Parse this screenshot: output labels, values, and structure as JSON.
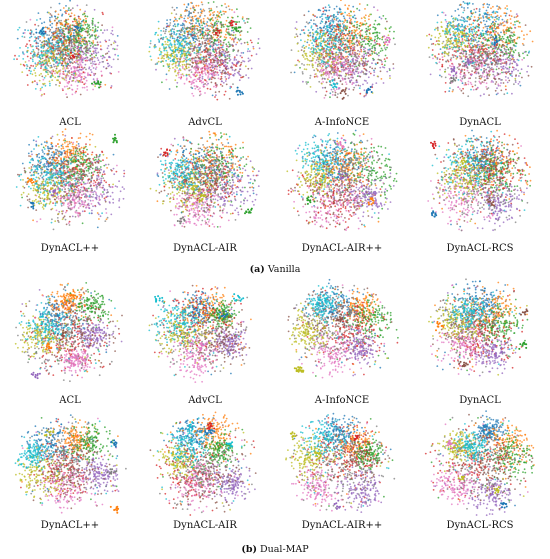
{
  "chart_data": {
    "type": "scatter",
    "description_kind": "t-SNE embeddings",
    "colors": [
      "#1f77b4",
      "#ff7f0e",
      "#2ca02c",
      "#d62728",
      "#9467bd",
      "#8c564b",
      "#e377c2",
      "#7f7f7f",
      "#bcbd22",
      "#17becf"
    ],
    "subfigures": [
      {
        "caption_letter": "(a)",
        "caption_text": "Vanilla",
        "panels": [
          {
            "label": "ACL"
          },
          {
            "label": "AdvCL"
          },
          {
            "label": "A-InfoNCE"
          },
          {
            "label": "DynACL"
          },
          {
            "label": "DynACL++"
          },
          {
            "label": "DynACL-AIR"
          },
          {
            "label": "DynACL-AIR++"
          },
          {
            "label": "DynACL-RCS"
          }
        ]
      },
      {
        "caption_letter": "(b)",
        "caption_text": "Dual-MAP",
        "panels": [
          {
            "label": "ACL"
          },
          {
            "label": "AdvCL"
          },
          {
            "label": "A-InfoNCE"
          },
          {
            "label": "DynACL"
          },
          {
            "label": "DynACL++"
          },
          {
            "label": "DynACL-AIR"
          },
          {
            "label": "DynACL-AIR++"
          },
          {
            "label": "DynACL-RCS"
          }
        ]
      }
    ]
  }
}
